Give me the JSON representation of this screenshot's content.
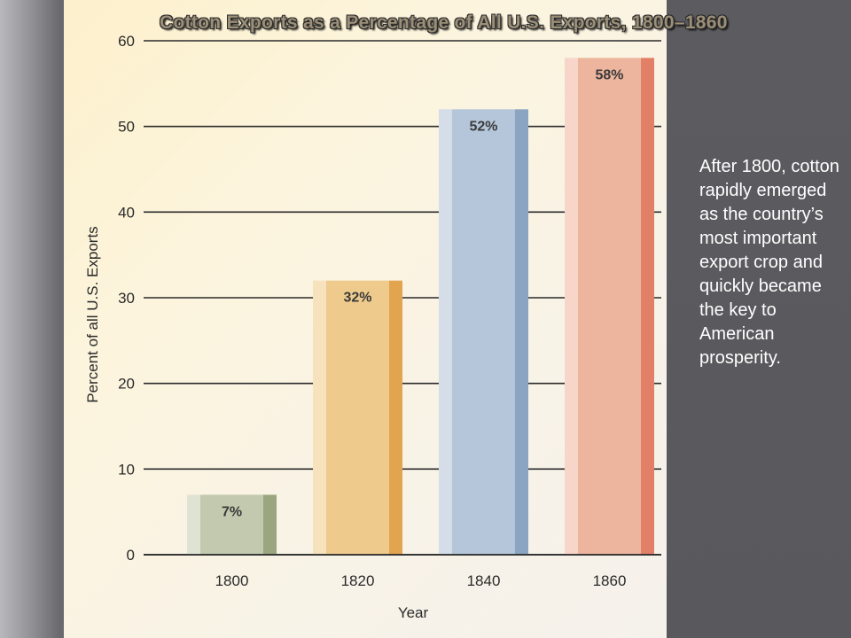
{
  "slide": {
    "side_text": "After 1800, cotton rapidly emerged as the country’s most important export crop and quickly became the key to American prosperity."
  },
  "chart_data": {
    "type": "bar",
    "title": "Cotton Exports as a Percentage of All U.S. Exports, 1800–1860",
    "xlabel": "Year",
    "ylabel": "Percent of all U.S. Exports",
    "categories": [
      "1800",
      "1820",
      "1840",
      "1860"
    ],
    "values": [
      7,
      32,
      52,
      58
    ],
    "data_labels": [
      "7%",
      "32%",
      "52%",
      "58%"
    ],
    "ylim": [
      0,
      60
    ],
    "yticks": [
      0,
      10,
      20,
      30,
      40,
      50,
      60
    ],
    "grid": true,
    "colors": {
      "bars": [
        {
          "light": "#dfe3d3",
          "main": "#c2c9ae",
          "dark": "#9aa67f"
        },
        {
          "light": "#f6e2bc",
          "main": "#eecb8d",
          "dark": "#e3a450"
        },
        {
          "light": "#d4dde8",
          "main": "#b5c6da",
          "dark": "#8aa4c2"
        },
        {
          "light": "#f7d5c8",
          "main": "#edb59d",
          "dark": "#e27f67"
        }
      ],
      "gridline": "#2a2a2a"
    }
  }
}
